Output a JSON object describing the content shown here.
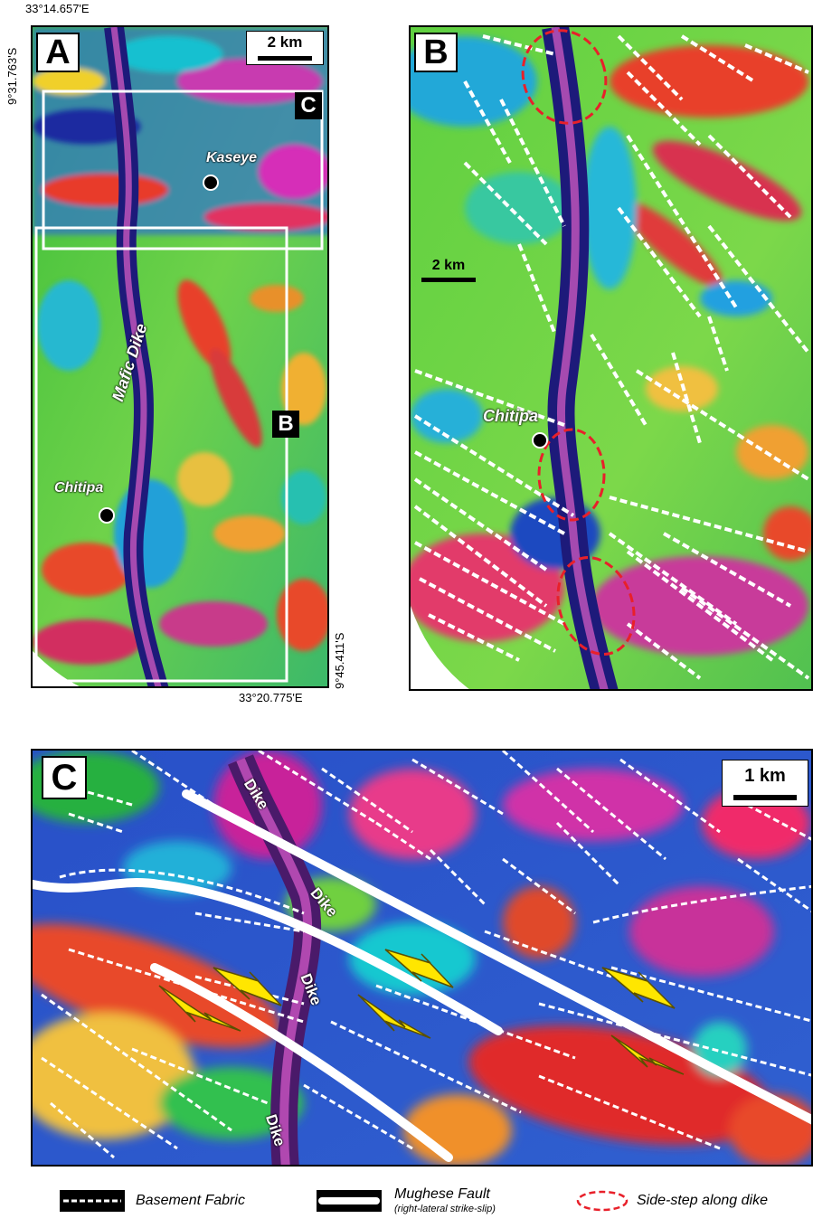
{
  "panel_a": {
    "label": "A",
    "scale_label": "2 km",
    "coord_top_left_lon": "33°14.657'E",
    "coord_top_left_lat": "9°31.763'S",
    "coord_bottom_right_lon": "33°20.775'E",
    "coord_bottom_right_lat": "9°45.411'S",
    "inset_c_label": "C",
    "inset_b_label": "B",
    "places": {
      "kaseye": "Kaseye",
      "chitipa": "Chitipa"
    },
    "dike_label": "Mafic Dike"
  },
  "panel_b": {
    "label": "B",
    "scale_label": "2 km",
    "places": {
      "chitipa": "Chitipa"
    }
  },
  "panel_c": {
    "label": "C",
    "scale_label": "1 km",
    "dike_labels": [
      "Dike",
      "Dike",
      "Dike",
      "Dike"
    ]
  },
  "legend": {
    "basement_fabric": "Basement Fabric",
    "mughese_fault": "Mughese Fault",
    "mughese_fault_sub": "(right-lateral strike-slip)",
    "side_step": "Side-step along dike"
  },
  "colors": {
    "fabric_line": "#ffffff",
    "fault_line": "#ffffff",
    "side_step_ellipse": "#e8202a",
    "arrows": "#ffe600",
    "dike": "#7a1a6e"
  }
}
